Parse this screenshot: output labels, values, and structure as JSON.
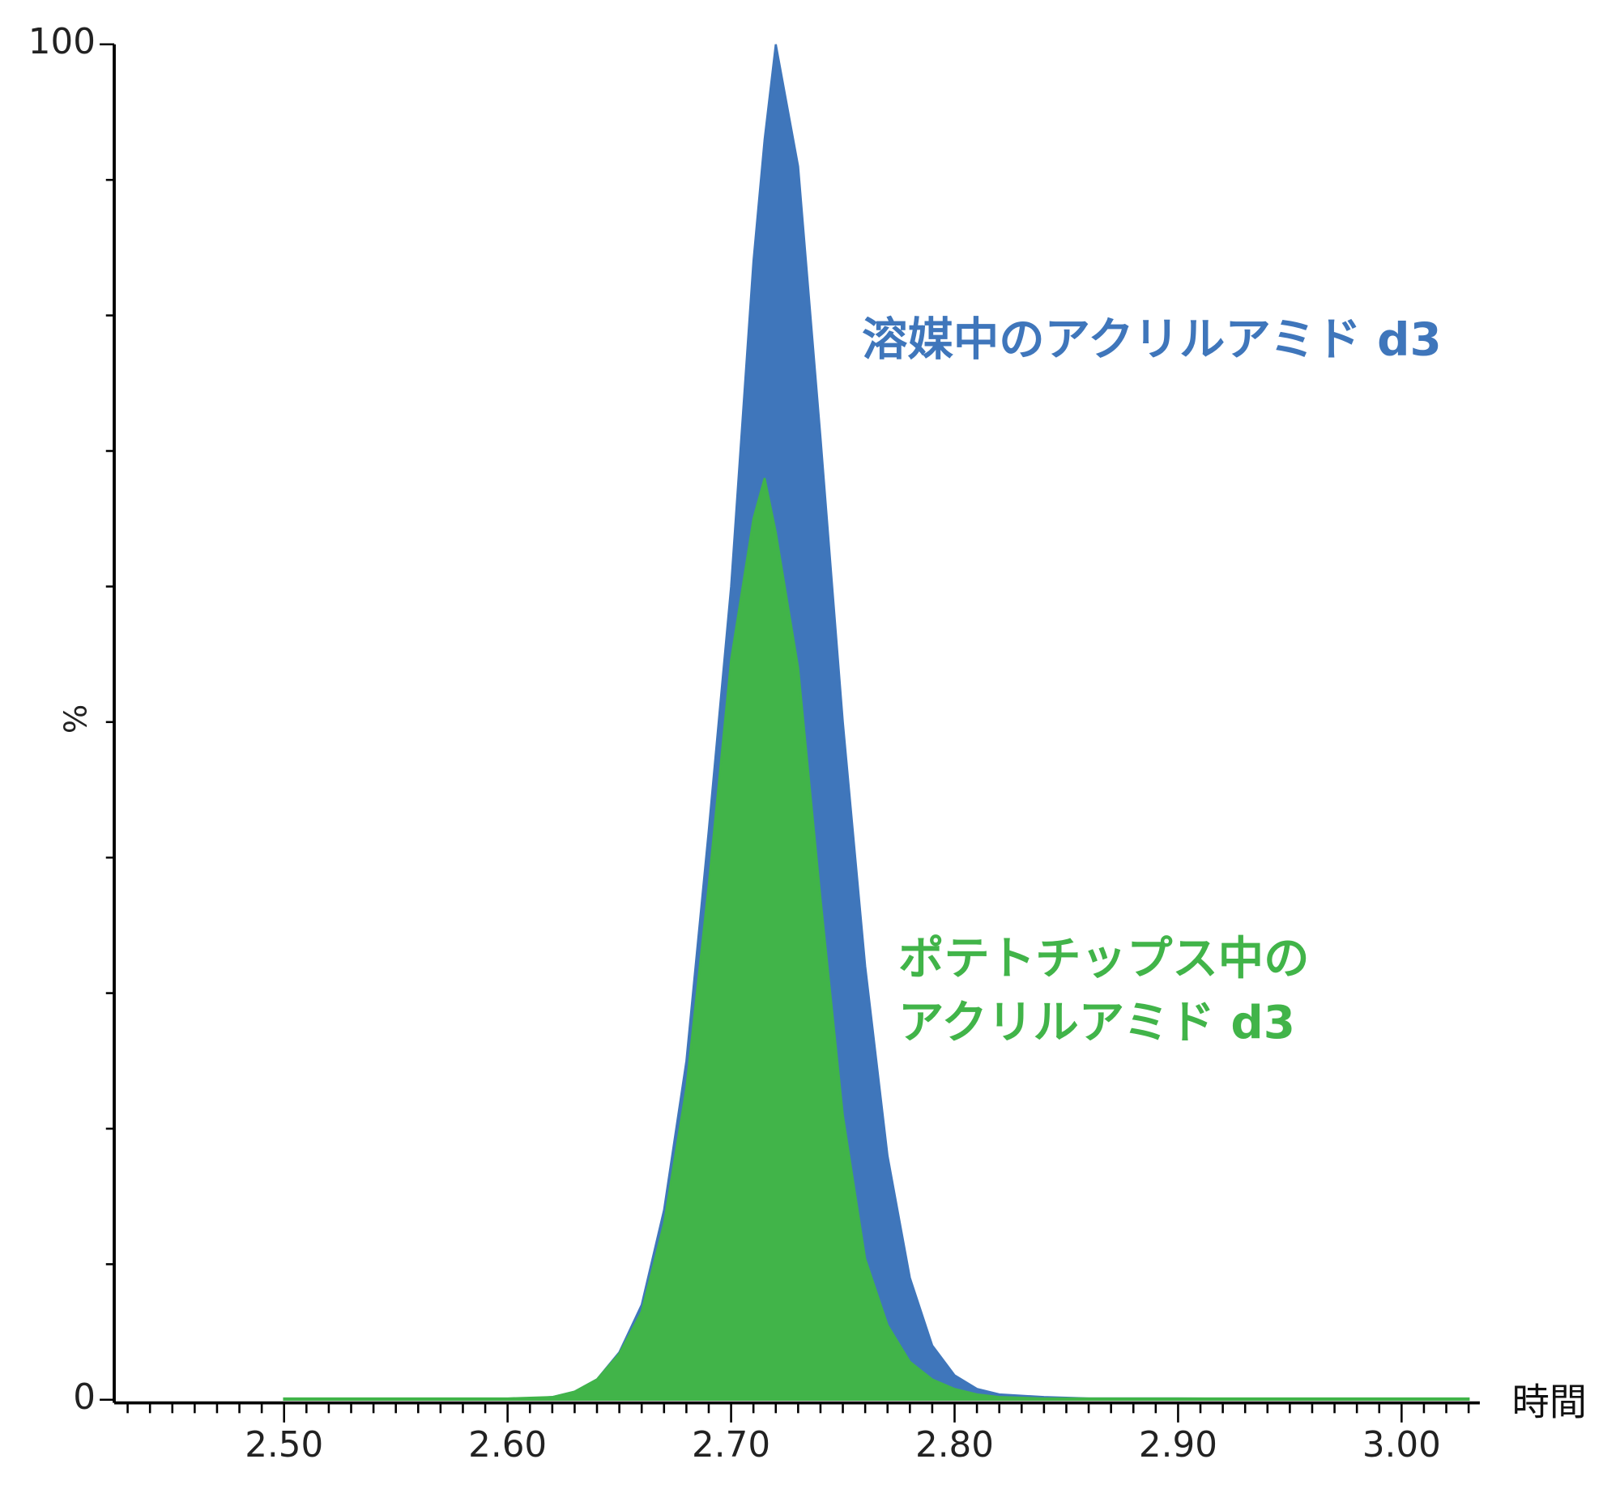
{
  "chart_data": {
    "type": "area",
    "x": [
      2.5,
      2.6,
      2.62,
      2.63,
      2.64,
      2.65,
      2.66,
      2.67,
      2.68,
      2.69,
      2.7,
      2.71,
      2.715,
      2.72,
      2.73,
      2.74,
      2.75,
      2.76,
      2.77,
      2.78,
      2.79,
      2.8,
      2.81,
      2.82,
      2.84,
      2.86,
      2.9,
      3.03
    ],
    "series": [
      {
        "label_lines": [
          "溶媒中のアクリルアミド d3"
        ],
        "color": "#3f76bb",
        "values": [
          0,
          0,
          0.2,
          0.6,
          1.5,
          3.5,
          7,
          14,
          25,
          42,
          60,
          84,
          93,
          100,
          91,
          71,
          50,
          32,
          18,
          9,
          4,
          1.8,
          0.8,
          0.4,
          0.2,
          0.1,
          0.1,
          0
        ]
      },
      {
        "label_lines": [
          "ポテトチップス中の",
          "アクリルアミド d3"
        ],
        "color": "#41b449",
        "values": [
          0.1,
          0.1,
          0.2,
          0.6,
          1.5,
          3.4,
          6.5,
          13,
          23,
          38,
          54.6,
          65,
          68,
          64,
          54,
          37,
          21,
          10.4,
          5.5,
          2.8,
          1.5,
          0.8,
          0.4,
          0.2,
          0.1,
          0.1,
          0.1,
          0.1
        ]
      }
    ],
    "xlabel": "時間",
    "ylabel": "%",
    "xlim": [
      2.424,
      3.035
    ],
    "ylim": [
      0,
      100
    ],
    "xticks": [
      {
        "value": 2.5,
        "label": "2.50"
      },
      {
        "value": 2.6,
        "label": "2.60"
      },
      {
        "value": 2.7,
        "label": "2.70"
      },
      {
        "value": 2.8,
        "label": "2.80"
      },
      {
        "value": 2.9,
        "label": "2.90"
      },
      {
        "value": 3.0,
        "label": "3.00"
      }
    ],
    "xminorticks": [
      2.43,
      2.44,
      2.45,
      2.46,
      2.47,
      2.48,
      2.49,
      2.51,
      2.52,
      2.53,
      2.54,
      2.55,
      2.56,
      2.57,
      2.58,
      2.59,
      2.61,
      2.62,
      2.63,
      2.64,
      2.65,
      2.66,
      2.67,
      2.68,
      2.69,
      2.71,
      2.72,
      2.73,
      2.74,
      2.75,
      2.76,
      2.77,
      2.78,
      2.79,
      2.81,
      2.82,
      2.83,
      2.84,
      2.85,
      2.86,
      2.87,
      2.88,
      2.89,
      2.91,
      2.92,
      2.93,
      2.94,
      2.95,
      2.96,
      2.97,
      2.98,
      2.99,
      3.01,
      3.02,
      3.03
    ],
    "yticks": [
      0,
      100
    ],
    "yminorticks": [
      10,
      20,
      30,
      40,
      50,
      60,
      70,
      80,
      90
    ]
  }
}
